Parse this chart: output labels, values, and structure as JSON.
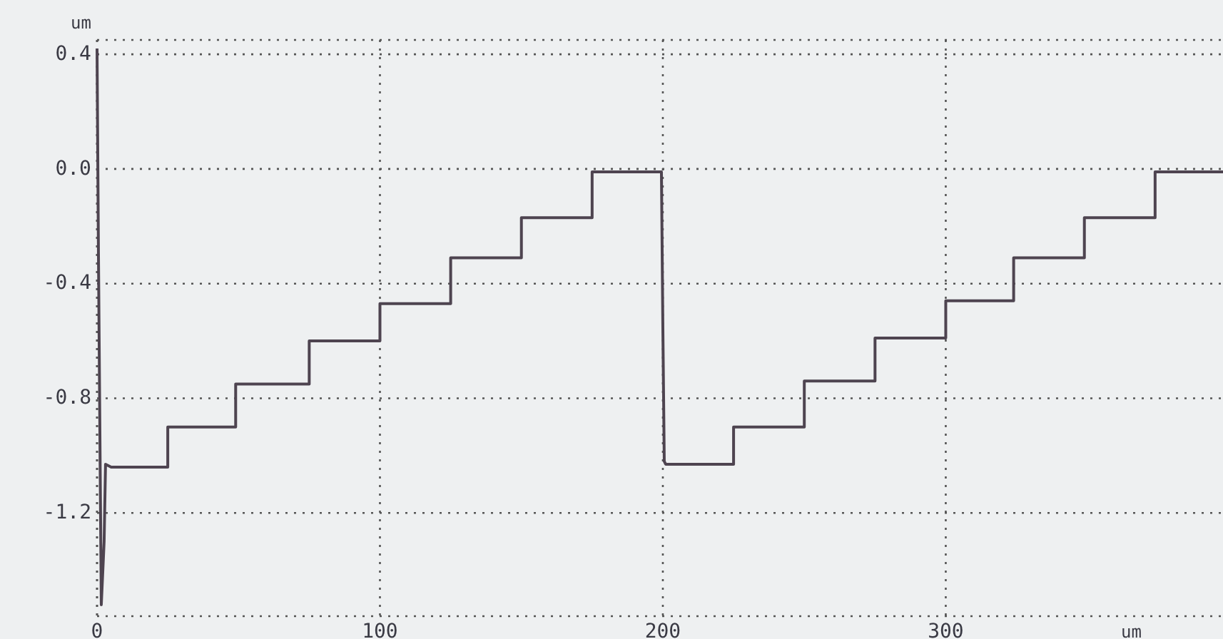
{
  "chart_data": {
    "type": "line",
    "xlabel": "um",
    "ylabel": "um",
    "xlim": [
      0,
      398
    ],
    "ylim": [
      -1.56,
      0.45
    ],
    "xticks": [
      0,
      100,
      200,
      300
    ],
    "yticks": [
      0.4,
      {
        "value": 0,
        "label": "0.0"
      },
      -0.4,
      -0.8,
      -1.2
    ],
    "grid": true,
    "line_style": "solid",
    "marker": "none",
    "series": [
      {
        "color": "#4e4450",
        "x": [
          0,
          0.5,
          1.5,
          2.5,
          3,
          5,
          25,
          25,
          49,
          49,
          75,
          75,
          100,
          100,
          125,
          125,
          150,
          150,
          175,
          175,
          199.5,
          200,
          200.5,
          201,
          225,
          225,
          250,
          250,
          275,
          275,
          300,
          300,
          324,
          324,
          349,
          349,
          374,
          374,
          398
        ],
        "values": [
          0.42,
          -0.3,
          -1.52,
          -1.3,
          -1.03,
          -1.04,
          -1.04,
          -0.9,
          -0.9,
          -0.75,
          -0.75,
          -0.6,
          -0.6,
          -0.47,
          -0.47,
          -0.31,
          -0.31,
          -0.17,
          -0.17,
          -0.01,
          -0.01,
          -0.55,
          -1.02,
          -1.03,
          -1.03,
          -0.9,
          -0.9,
          -0.74,
          -0.74,
          -0.59,
          -0.59,
          -0.46,
          -0.46,
          -0.31,
          -0.31,
          -0.17,
          -0.17,
          -0.01,
          -0.01
        ]
      }
    ]
  }
}
